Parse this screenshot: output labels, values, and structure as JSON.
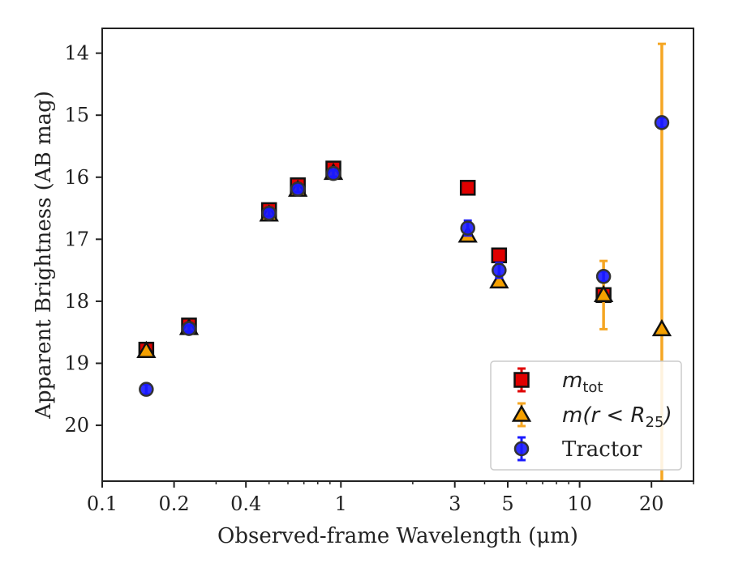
{
  "chart_data": {
    "type": "scatter",
    "xlabel": "Observed-frame Wavelength (μm)",
    "ylabel": "Apparent Brightness (AB mag)",
    "xscale": "log",
    "xlim": [
      0.1,
      30
    ],
    "ylim": [
      20.9,
      13.6
    ],
    "y_inverted": true,
    "x_ticks": [
      0.1,
      0.2,
      0.4,
      1,
      3,
      5,
      10,
      20
    ],
    "x_tick_labels": [
      "0.1",
      "0.2",
      "0.4",
      "1",
      "3",
      "5",
      "10",
      "20"
    ],
    "y_ticks": [
      14,
      15,
      16,
      17,
      18,
      19,
      20
    ],
    "y_tick_labels": [
      "14",
      "15",
      "16",
      "17",
      "18",
      "19",
      "20"
    ],
    "legend_position": "lower-right",
    "series": [
      {
        "name": "m_tot",
        "legend_label": {
          "main": "m",
          "sub": "tot"
        },
        "marker": "square",
        "color": "#e00000",
        "errcolor": "#e00000",
        "points": [
          {
            "x": 0.153,
            "y": 18.78,
            "err": 0.05
          },
          {
            "x": 0.231,
            "y": 18.39,
            "err": 0.04
          },
          {
            "x": 0.5,
            "y": 16.53,
            "err": 0.04
          },
          {
            "x": 0.66,
            "y": 16.13,
            "err": 0.04
          },
          {
            "x": 0.93,
            "y": 15.86,
            "err": 0.04
          },
          {
            "x": 3.4,
            "y": 16.17,
            "err": 0.03
          },
          {
            "x": 4.6,
            "y": 17.26,
            "err": 0.03
          },
          {
            "x": 12.6,
            "y": 17.9,
            "err": 0.06
          }
        ]
      },
      {
        "name": "m(r < R25)",
        "legend_label": {
          "main": "m(r < R",
          "sub": "25",
          "tail": ")"
        },
        "marker": "triangle",
        "color": "#f5a000",
        "errcolor": "#f5a623",
        "points": [
          {
            "x": 0.153,
            "y": 18.8,
            "err": 0.04
          },
          {
            "x": 0.231,
            "y": 18.43,
            "err": 0.04
          },
          {
            "x": 0.5,
            "y": 16.6,
            "err": 0.03
          },
          {
            "x": 0.66,
            "y": 16.2,
            "err": 0.03
          },
          {
            "x": 0.93,
            "y": 15.93,
            "err": 0.03
          },
          {
            "x": 3.4,
            "y": 16.94,
            "err": 0.05
          },
          {
            "x": 4.6,
            "y": 17.68,
            "err": 0.05
          },
          {
            "x": 12.6,
            "y": 17.9,
            "err": 0.55
          },
          {
            "x": 22.1,
            "y": 18.45,
            "err": 4.6
          }
        ]
      },
      {
        "name": "Tractor",
        "legend_label": {
          "main": "Tractor"
        },
        "marker": "circle",
        "color": "#1a1aff",
        "errcolor": "#1a1aff",
        "points": [
          {
            "x": 0.153,
            "y": 19.42,
            "err": 0.08
          },
          {
            "x": 0.231,
            "y": 18.44,
            "err": 0.05
          },
          {
            "x": 0.5,
            "y": 16.58,
            "err": 0.05
          },
          {
            "x": 0.66,
            "y": 16.19,
            "err": 0.05
          },
          {
            "x": 0.93,
            "y": 15.94,
            "err": 0.05
          },
          {
            "x": 3.4,
            "y": 16.82,
            "err": 0.12
          },
          {
            "x": 4.6,
            "y": 17.5,
            "err": 0.12
          },
          {
            "x": 12.6,
            "y": 17.6,
            "err": 0.08
          },
          {
            "x": 22.1,
            "y": 15.12,
            "err": 0.08
          }
        ]
      }
    ]
  }
}
